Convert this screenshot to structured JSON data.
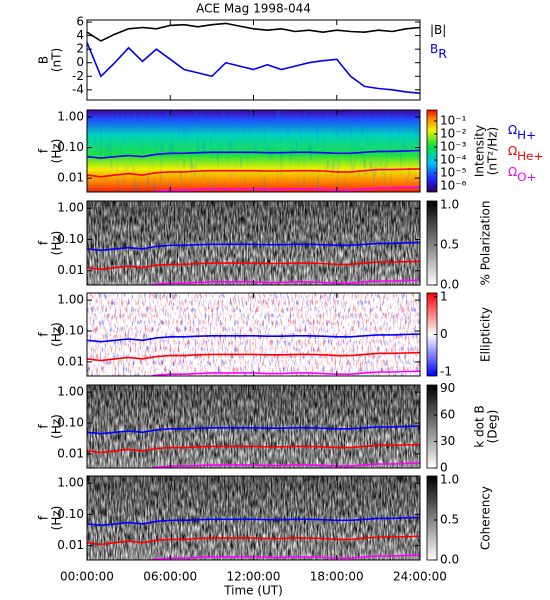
{
  "chart_data": [
    {
      "type": "line",
      "title": "ACE Mag 1998-044",
      "y_label": [
        "B",
        "(nT)"
      ],
      "ylim": [
        -5.5,
        6.3
      ],
      "yticks": [
        -4,
        -2,
        0,
        2,
        4,
        6
      ],
      "x": [
        0,
        1,
        2,
        3,
        4,
        5,
        6,
        7,
        8,
        9,
        10,
        11,
        12,
        13,
        14,
        15,
        16,
        17,
        18,
        19,
        20,
        21,
        22,
        23,
        24
      ],
      "series": [
        {
          "name": "|B|",
          "color": "#000000",
          "values": [
            4.5,
            3.2,
            4.2,
            5.0,
            5.2,
            5.0,
            5.5,
            5.6,
            5.3,
            5.6,
            5.8,
            5.4,
            5.0,
            4.8,
            5.0,
            4.6,
            4.8,
            4.5,
            4.8,
            4.6,
            4.5,
            4.8,
            4.6,
            5.0,
            5.2
          ]
        },
        {
          "name": "B",
          "name_sub": "R",
          "color": "#0000ff",
          "values": [
            3.0,
            -2.0,
            0.0,
            2.2,
            0.2,
            2.0,
            0.5,
            -1.0,
            -1.5,
            -2.0,
            0.0,
            -0.5,
            -1.0,
            -0.3,
            -1.0,
            -0.5,
            0.0,
            0.3,
            0.5,
            -2.0,
            -3.5,
            -3.8,
            -4.0,
            -4.3,
            -4.5
          ]
        }
      ]
    },
    {
      "type": "spectrogram",
      "y_label": [
        "f",
        "(Hz)"
      ],
      "ylog": true,
      "ylim": [
        0.0035,
        1.7
      ],
      "yticks": [
        {
          "value": 1,
          "label": "1.00"
        },
        {
          "value": 0.1,
          "label": "0.10"
        },
        0.01
      ],
      "colormap": "rainbow",
      "zlog": true,
      "zlim": [
        3.5e-07,
        0.7
      ],
      "z_label": [
        "Intensity",
        "(nT²/Hz)"
      ],
      "zticks": [
        {
          "value": 0.1,
          "label": "10⁻¹"
        },
        {
          "value": 0.01,
          "label": "10⁻²"
        },
        {
          "value": 0.001,
          "label": "10⁻³"
        },
        {
          "value": 0.0001,
          "label": "10⁻⁴"
        },
        {
          "value": 1e-05,
          "label": "10⁻⁵"
        },
        {
          "value": 1e-06,
          "label": "10⁻⁶"
        }
      ],
      "x": [
        0,
        1,
        2,
        3,
        4,
        5,
        6,
        7,
        8,
        9,
        10,
        11,
        12,
        13,
        14,
        15,
        16,
        17,
        18,
        19,
        20,
        21,
        22,
        23,
        24
      ],
      "series": [
        {
          "name": "Ω",
          "name_sub": "H+",
          "color": "#0000ff",
          "values": [
            0.05,
            0.045,
            0.05,
            0.055,
            0.05,
            0.06,
            0.065,
            0.065,
            0.068,
            0.07,
            0.07,
            0.07,
            0.07,
            0.068,
            0.068,
            0.07,
            0.07,
            0.068,
            0.065,
            0.065,
            0.07,
            0.075,
            0.075,
            0.078,
            0.08
          ]
        },
        {
          "name": "Ω",
          "name_sub": "He+",
          "color": "#ff0000",
          "values": [
            0.0125,
            0.011,
            0.0125,
            0.014,
            0.0125,
            0.015,
            0.016,
            0.016,
            0.017,
            0.0175,
            0.0175,
            0.0175,
            0.0175,
            0.017,
            0.017,
            0.0175,
            0.0175,
            0.017,
            0.016,
            0.016,
            0.0175,
            0.019,
            0.019,
            0.0195,
            0.02
          ]
        },
        {
          "name": "Ω",
          "name_sub": "O+",
          "color": "#ff00ff",
          "values": [
            0.0031,
            0.0028,
            0.0031,
            0.0034,
            0.0031,
            0.0037,
            0.004,
            0.004,
            0.0042,
            0.0044,
            0.0044,
            0.0044,
            0.0044,
            0.0042,
            0.0042,
            0.0044,
            0.0044,
            0.0042,
            0.004,
            0.004,
            0.0044,
            0.0047,
            0.0047,
            0.0049,
            0.005
          ]
        }
      ]
    },
    {
      "type": "spectrogram",
      "y_label": [
        "f",
        "(Hz)"
      ],
      "ylog": true,
      "ylim": [
        0.0035,
        1.7
      ],
      "yticks": [
        {
          "value": 1,
          "label": "1.00"
        },
        {
          "value": 0.1,
          "label": "0.10"
        },
        0.01
      ],
      "colormap": "gray",
      "zlim": [
        0,
        1.05
      ],
      "z_label": [
        "% Polarization"
      ],
      "zticks": [
        {
          "value": 0,
          "label": "0.0"
        },
        {
          "value": 0.5,
          "label": "0.5"
        },
        {
          "value": 1,
          "label": "1.0"
        }
      ]
    },
    {
      "type": "spectrogram",
      "y_label": [
        "f",
        "(Hz)"
      ],
      "ylog": true,
      "ylim": [
        0.0035,
        1.7
      ],
      "yticks": [
        {
          "value": 1,
          "label": "1.00"
        },
        {
          "value": 0.1,
          "label": "0.10"
        },
        0.01
      ],
      "colormap": "bluewhitered",
      "zlim": [
        -1.1,
        1.1
      ],
      "z_label": [
        "Ellipticity"
      ],
      "zticks": [
        -1,
        0,
        1
      ]
    },
    {
      "type": "spectrogram",
      "y_label": [
        "f",
        "(Hz)"
      ],
      "ylog": true,
      "ylim": [
        0.0035,
        1.7
      ],
      "yticks": [
        {
          "value": 1,
          "label": "1.00"
        },
        {
          "value": 0.1,
          "label": "0.10"
        },
        0.01
      ],
      "colormap": "gray",
      "zlim": [
        0,
        94
      ],
      "z_label": [
        "k dot B",
        "(Deg)"
      ],
      "zticks": [
        0,
        30,
        60,
        90
      ]
    },
    {
      "type": "spectrogram",
      "y_label": [
        "f",
        "(Hz)"
      ],
      "ylog": true,
      "ylim": [
        0.0035,
        1.7
      ],
      "yticks": [
        {
          "value": 1,
          "label": "1.00"
        },
        {
          "value": 0.1,
          "label": "0.10"
        },
        0.01
      ],
      "colormap": "gray",
      "zlim": [
        0,
        1.05
      ],
      "z_label": [
        "Coherency"
      ],
      "zticks": [
        {
          "value": 0,
          "label": "0.0"
        },
        {
          "value": 0.5,
          "label": "0.5"
        },
        {
          "value": 1,
          "label": "1.0"
        }
      ],
      "x_label": "Time (UT)",
      "xlim": [
        0,
        24
      ],
      "xticks": [
        {
          "value": 0,
          "label": "00:00:00"
        },
        {
          "value": 6,
          "label": "06:00:00"
        },
        {
          "value": 12,
          "label": "12:00:00"
        },
        {
          "value": 18,
          "label": "18:00:00"
        },
        {
          "value": 24,
          "label": "24:00:00"
        }
      ]
    }
  ]
}
